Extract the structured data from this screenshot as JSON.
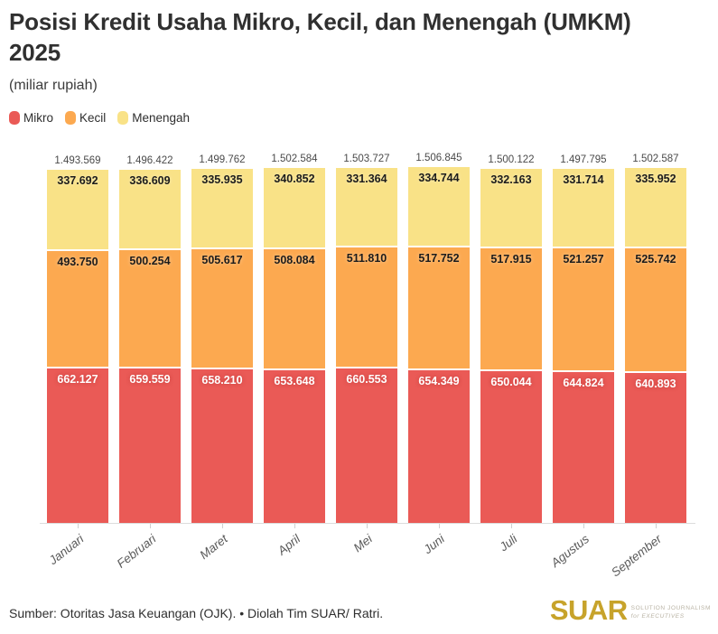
{
  "header": {
    "title_line1": "Posisi Kredit Usaha Mikro, Kecil, dan Menengah (UMKM)",
    "title_line2": "2025",
    "subtitle": "(miliar rupiah)"
  },
  "legend": [
    {
      "label": "Mikro",
      "color": "#ea5a56"
    },
    {
      "label": "Kecil",
      "color": "#fca950"
    },
    {
      "label": "Menengah",
      "color": "#f9e287"
    }
  ],
  "chart_data": {
    "type": "bar",
    "stacked": true,
    "title": "Posisi Kredit Usaha Mikro, Kecil, dan Menengah (UMKM) 2025",
    "unit": "miliar rupiah",
    "categories": [
      "Januari",
      "Februari",
      "Maret",
      "April",
      "Mei",
      "Juni",
      "Juli",
      "Agustus",
      "September"
    ],
    "series": [
      {
        "name": "Mikro",
        "color": "#ea5a56",
        "label_style": "light",
        "values": [
          662127,
          659559,
          658210,
          653648,
          660553,
          654349,
          650044,
          644824,
          640893
        ]
      },
      {
        "name": "Kecil",
        "color": "#fca950",
        "label_style": "dark",
        "values": [
          493750,
          500254,
          505617,
          508084,
          511810,
          517752,
          517915,
          521257,
          525742
        ]
      },
      {
        "name": "Menengah",
        "color": "#f9e287",
        "label_style": "dark",
        "values": [
          337692,
          336609,
          335935,
          340852,
          331364,
          334744,
          332163,
          331714,
          335952
        ]
      }
    ],
    "totals": [
      1493569,
      1496422,
      1499762,
      1502584,
      1503727,
      1506845,
      1500122,
      1497795,
      1502587
    ],
    "value_format": "dot-thousands",
    "grid": false,
    "legend_position": "top-left",
    "ylim": [
      0,
      1506845
    ]
  },
  "footer": {
    "source": "Sumber: Otoritas Jasa Keuangan (OJK). • Diolah Tim SUAR/ Ratri.",
    "logo": {
      "text": "SUAR",
      "tagline_line1": "SOLUTION JOURNALISM",
      "tagline_line2": "for EXECUTIVES"
    }
  },
  "colors": {
    "mikro": "#ea5a56",
    "kecil": "#fca950",
    "menengah": "#f9e287",
    "title_text": "#303030",
    "total_label": "#4a4a4a",
    "month_label": "#5a5a5a",
    "axis_line": "#dcdcdc",
    "source_text": "#2f2f2f",
    "logo_gold": "#c7a32b",
    "tagline": "#b9b3a4"
  }
}
